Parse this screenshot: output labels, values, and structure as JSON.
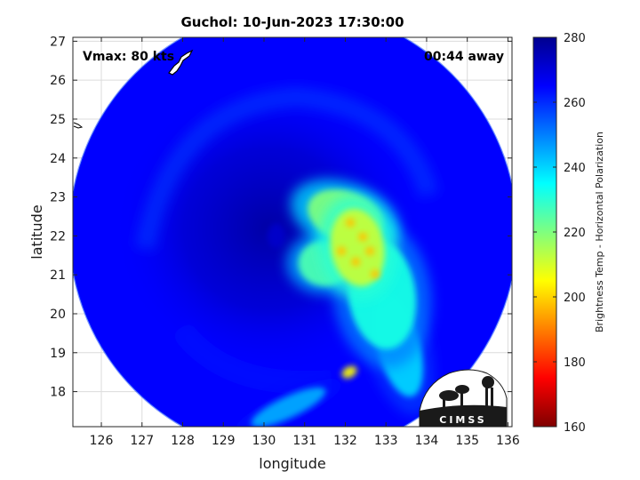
{
  "chart_data": {
    "type": "heatmap",
    "title": "Guchol: 10-Jun-2023 17:30:00",
    "xlabel": "longitude",
    "ylabel": "latitude",
    "xlim": [
      125.3,
      136.1
    ],
    "ylim": [
      17.1,
      27.1
    ],
    "x_ticks": [
      "126",
      "127",
      "128",
      "129",
      "130",
      "131",
      "132",
      "133",
      "134",
      "135",
      "136"
    ],
    "y_ticks": [
      "18",
      "19",
      "20",
      "21",
      "22",
      "23",
      "24",
      "25",
      "26",
      "27"
    ],
    "grid": true,
    "annotations": {
      "vmax": "Vmax: 80 kts",
      "away": "00:44 away"
    },
    "colorbar": {
      "label": "Brightness Temp - Horizontal Polarization",
      "range": [
        160,
        280
      ],
      "ticks": [
        "160",
        "180",
        "200",
        "220",
        "240",
        "260",
        "280"
      ],
      "colormap": [
        "#7f0000",
        "#ff0000",
        "#ff7f00",
        "#ffff00",
        "#7fff7f",
        "#00ffff",
        "#007fff",
        "#0000ff",
        "#00008f"
      ]
    },
    "swath": {
      "center_lon": 130.72,
      "center_lat": 22.1,
      "radius_deg": 5.5,
      "background_temp": 265
    },
    "storm_center": {
      "lon": 130.35,
      "lat": 22.6,
      "temp": 277
    },
    "features": [
      {
        "name": "rainband-core",
        "lon": 132.3,
        "lat": 21.7,
        "temp": 212
      },
      {
        "name": "rainband-north",
        "lon": 132.0,
        "lat": 22.5,
        "temp": 220
      },
      {
        "name": "rainband-west",
        "lon": 131.5,
        "lat": 21.3,
        "temp": 226
      },
      {
        "name": "rainband-south",
        "lon": 132.9,
        "lat": 20.5,
        "temp": 232
      },
      {
        "name": "rainband-tail",
        "lon": 133.3,
        "lat": 19.2,
        "temp": 240
      },
      {
        "name": "convective-cell",
        "lon": 132.1,
        "lat": 18.5,
        "temp": 205
      },
      {
        "name": "southern-band",
        "lon": 130.6,
        "lat": 17.6,
        "temp": 245
      },
      {
        "name": "eye",
        "lon": 130.3,
        "lat": 22.0,
        "temp": 272
      }
    ],
    "logo_text": "CIMSS"
  }
}
